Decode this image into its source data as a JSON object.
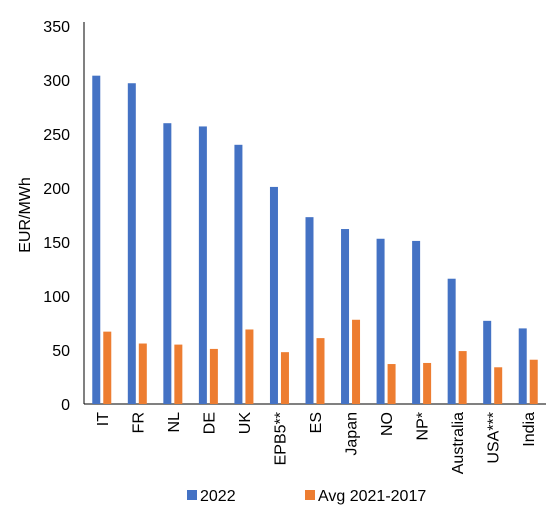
{
  "chart_data": {
    "type": "bar",
    "ylabel": "EUR/MWh",
    "xlabel": "",
    "ylim": [
      0,
      350
    ],
    "yticks": [
      0,
      50,
      100,
      150,
      200,
      250,
      300,
      350
    ],
    "categories": [
      "IT",
      "FR",
      "NL",
      "DE",
      "UK",
      "EPB5**",
      "ES",
      "Japan",
      "NO",
      "NP*",
      "Australia",
      "USA***",
      "India"
    ],
    "series": [
      {
        "name": "2022",
        "color": "#4472C4",
        "values": [
          304,
          297,
          260,
          257,
          240,
          201,
          173,
          162,
          153,
          151,
          116,
          77,
          70
        ]
      },
      {
        "name": "Avg 2021-2017",
        "color": "#ED7D31",
        "values": [
          67,
          56,
          55,
          51,
          69,
          48,
          61,
          78,
          37,
          38,
          49,
          34,
          41
        ]
      }
    ],
    "grid": false,
    "legend_position": "bottom"
  }
}
